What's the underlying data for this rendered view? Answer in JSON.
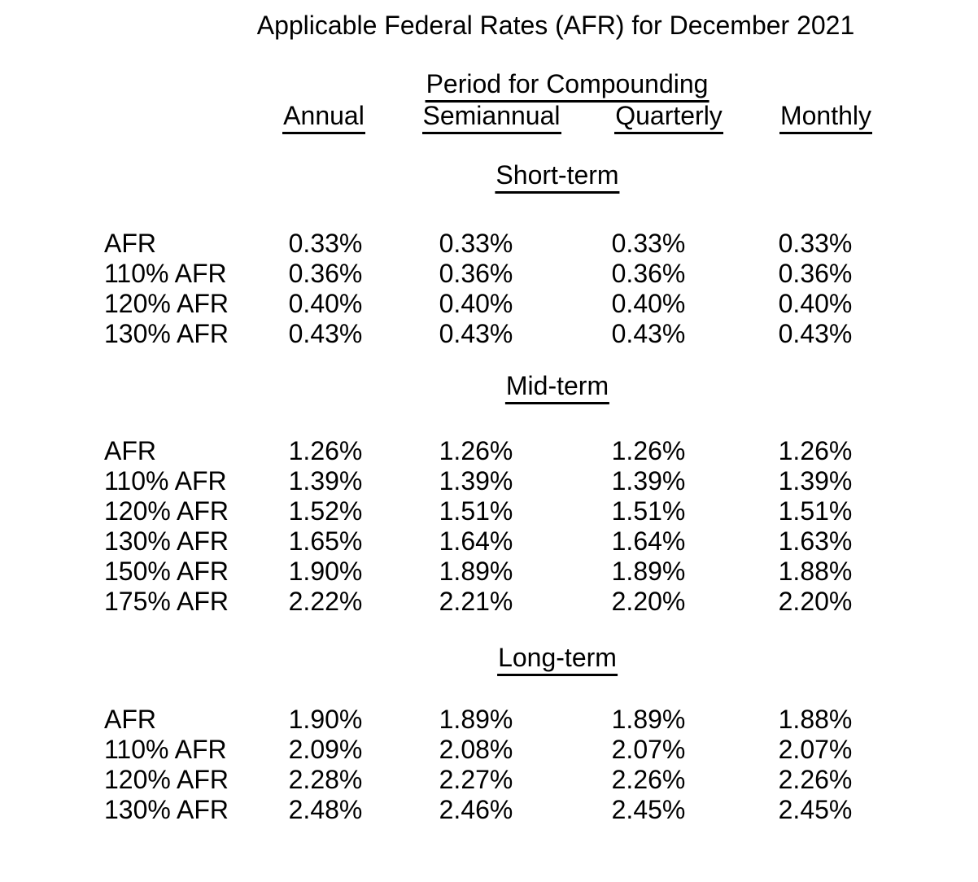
{
  "document": {
    "title": "Applicable Federal Rates (AFR) for December 2021",
    "colors": {
      "text": "#000000",
      "background": "#ffffff"
    },
    "table": {
      "group_header": "Period for Compounding",
      "columns": [
        "Annual",
        "Semiannual",
        "Quarterly",
        "Monthly"
      ],
      "sections": [
        {
          "heading": "Short-term",
          "rows": [
            {
              "label": "AFR",
              "values": [
                "0.33%",
                "0.33%",
                "0.33%",
                "0.33%"
              ]
            },
            {
              "label": "110% AFR",
              "values": [
                "0.36%",
                "0.36%",
                "0.36%",
                "0.36%"
              ]
            },
            {
              "label": "120% AFR",
              "values": [
                "0.40%",
                "0.40%",
                "0.40%",
                "0.40%"
              ]
            },
            {
              "label": "130% AFR",
              "values": [
                "0.43%",
                "0.43%",
                "0.43%",
                "0.43%"
              ]
            }
          ]
        },
        {
          "heading": "Mid-term",
          "rows": [
            {
              "label": "AFR",
              "values": [
                "1.26%",
                "1.26%",
                "1.26%",
                "1.26%"
              ]
            },
            {
              "label": "110% AFR",
              "values": [
                "1.39%",
                "1.39%",
                "1.39%",
                "1.39%"
              ]
            },
            {
              "label": "120% AFR",
              "values": [
                "1.52%",
                "1.51%",
                "1.51%",
                "1.51%"
              ]
            },
            {
              "label": "130% AFR",
              "values": [
                "1.65%",
                "1.64%",
                "1.64%",
                "1.63%"
              ]
            },
            {
              "label": "150% AFR",
              "values": [
                "1.90%",
                "1.89%",
                "1.89%",
                "1.88%"
              ]
            },
            {
              "label": "175% AFR",
              "values": [
                "2.22%",
                "2.21%",
                "2.20%",
                "2.20%"
              ]
            }
          ]
        },
        {
          "heading": "Long-term",
          "rows": [
            {
              "label": "AFR",
              "values": [
                "1.90%",
                "1.89%",
                "1.89%",
                "1.88%"
              ]
            },
            {
              "label": "110% AFR",
              "values": [
                "2.09%",
                "2.08%",
                "2.07%",
                "2.07%"
              ]
            },
            {
              "label": "120% AFR",
              "values": [
                "2.28%",
                "2.27%",
                "2.26%",
                "2.26%"
              ]
            },
            {
              "label": "130% AFR",
              "values": [
                "2.48%",
                "2.46%",
                "2.45%",
                "2.45%"
              ]
            }
          ]
        }
      ]
    }
  }
}
